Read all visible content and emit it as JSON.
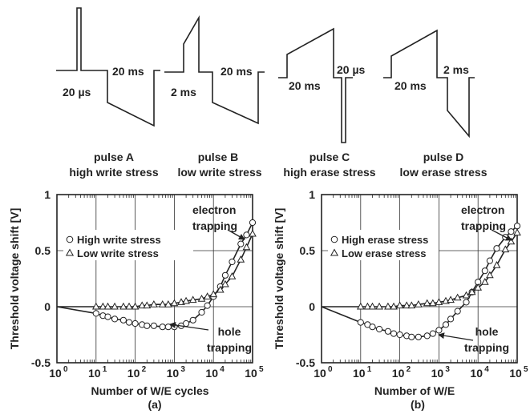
{
  "pulses": [
    {
      "key": "A",
      "name": "pulse A",
      "desc": "high write stress",
      "t_short": "20 µs",
      "t_long": "20 ms"
    },
    {
      "key": "B",
      "name": "pulse B",
      "desc": "low write stress",
      "t_short": "2 ms",
      "t_long": "20 ms"
    },
    {
      "key": "C",
      "name": "pulse C",
      "desc": "high erase stress",
      "t_long": "20 ms",
      "t_short": "20 µs"
    },
    {
      "key": "D",
      "name": "pulse D",
      "desc": "low erase stress",
      "t_long": "20 ms",
      "t_short": "2 ms"
    }
  ],
  "chart_data": [
    {
      "type": "line",
      "panel": "(a)",
      "xlabel": "Number of W/E cycles",
      "ylabel": "Threshold voltage shift [V]",
      "xscale": "log",
      "xlim": [
        1,
        100000
      ],
      "ylim": [
        -0.5,
        1
      ],
      "xticks": [
        "10",
        "10",
        "10",
        "10",
        "10",
        "10"
      ],
      "xtick_exps": [
        "0",
        "1",
        "2",
        "3",
        "4",
        "5"
      ],
      "yticks": [
        "1",
        "0.5",
        "0",
        "-0.5"
      ],
      "grid": true,
      "legend_position": "upper-left",
      "annotations": [
        {
          "text": [
            "electron",
            "trapping"
          ]
        },
        {
          "text": [
            "hole",
            "trapping"
          ]
        }
      ],
      "series": [
        {
          "name": "High write stress",
          "marker": "circle",
          "x": [
            1,
            10,
            15,
            20,
            30,
            50,
            70,
            100,
            150,
            200,
            300,
            500,
            700,
            1000,
            1500,
            2000,
            3000,
            5000,
            7000,
            10000,
            15000,
            20000,
            30000,
            50000,
            70000,
            100000
          ],
          "y": [
            0,
            -0.06,
            -0.08,
            -0.09,
            -0.11,
            -0.12,
            -0.14,
            -0.15,
            -0.16,
            -0.17,
            -0.17,
            -0.18,
            -0.18,
            -0.18,
            -0.17,
            -0.15,
            -0.12,
            -0.05,
            0.01,
            0.09,
            0.18,
            0.28,
            0.4,
            0.56,
            0.64,
            0.75
          ]
        },
        {
          "name": "Low write stress",
          "marker": "triangle",
          "x": [
            1,
            10,
            15,
            20,
            30,
            50,
            70,
            100,
            150,
            200,
            300,
            500,
            700,
            1000,
            1500,
            2000,
            3000,
            5000,
            7000,
            10000,
            15000,
            20000,
            30000,
            50000,
            70000,
            100000
          ],
          "y": [
            0,
            0,
            0,
            0,
            0,
            0,
            0,
            0,
            0.01,
            0.01,
            0.02,
            0.02,
            0.02,
            0.03,
            0.04,
            0.05,
            0.06,
            0.07,
            0.09,
            0.11,
            0.15,
            0.2,
            0.27,
            0.42,
            0.53,
            0.65
          ]
        }
      ]
    },
    {
      "type": "line",
      "panel": "(b)",
      "xlabel": "Number of W/E",
      "ylabel": "Threshold voltage shift [V]",
      "xscale": "log",
      "xlim": [
        1,
        100000
      ],
      "ylim": [
        -0.5,
        1
      ],
      "xticks": [
        "10",
        "10",
        "10",
        "10",
        "10",
        "10"
      ],
      "xtick_exps": [
        "0",
        "1",
        "2",
        "3",
        "4",
        "5"
      ],
      "yticks": [
        "1",
        "0.5",
        "0",
        "-0.5"
      ],
      "grid": true,
      "legend_position": "upper-left",
      "annotations": [
        {
          "text": [
            "electron",
            "trapping"
          ]
        },
        {
          "text": [
            "hole",
            "trapping"
          ]
        }
      ],
      "series": [
        {
          "name": "High erase stress",
          "marker": "circle",
          "x": [
            1,
            10,
            15,
            20,
            30,
            50,
            70,
            100,
            150,
            200,
            300,
            500,
            700,
            1000,
            1500,
            2000,
            3000,
            5000,
            7000,
            10000,
            15000,
            20000,
            30000,
            50000,
            70000,
            100000
          ],
          "y": [
            0,
            -0.14,
            -0.16,
            -0.18,
            -0.2,
            -0.22,
            -0.24,
            -0.25,
            -0.26,
            -0.27,
            -0.27,
            -0.26,
            -0.24,
            -0.21,
            -0.16,
            -0.11,
            -0.04,
            0.04,
            0.13,
            0.22,
            0.32,
            0.41,
            0.52,
            0.62,
            0.67,
            0.72
          ]
        },
        {
          "name": "Low erase stress",
          "marker": "triangle",
          "x": [
            1,
            10,
            15,
            20,
            30,
            50,
            70,
            100,
            150,
            200,
            300,
            500,
            700,
            1000,
            1500,
            2000,
            3000,
            5000,
            7000,
            10000,
            15000,
            20000,
            30000,
            50000,
            70000,
            100000
          ],
          "y": [
            0,
            0,
            0,
            0,
            0,
            0,
            0,
            0.01,
            0.01,
            0.01,
            0.02,
            0.03,
            0.03,
            0.04,
            0.05,
            0.06,
            0.08,
            0.1,
            0.13,
            0.17,
            0.22,
            0.28,
            0.37,
            0.51,
            0.58,
            0.66
          ]
        }
      ]
    }
  ]
}
